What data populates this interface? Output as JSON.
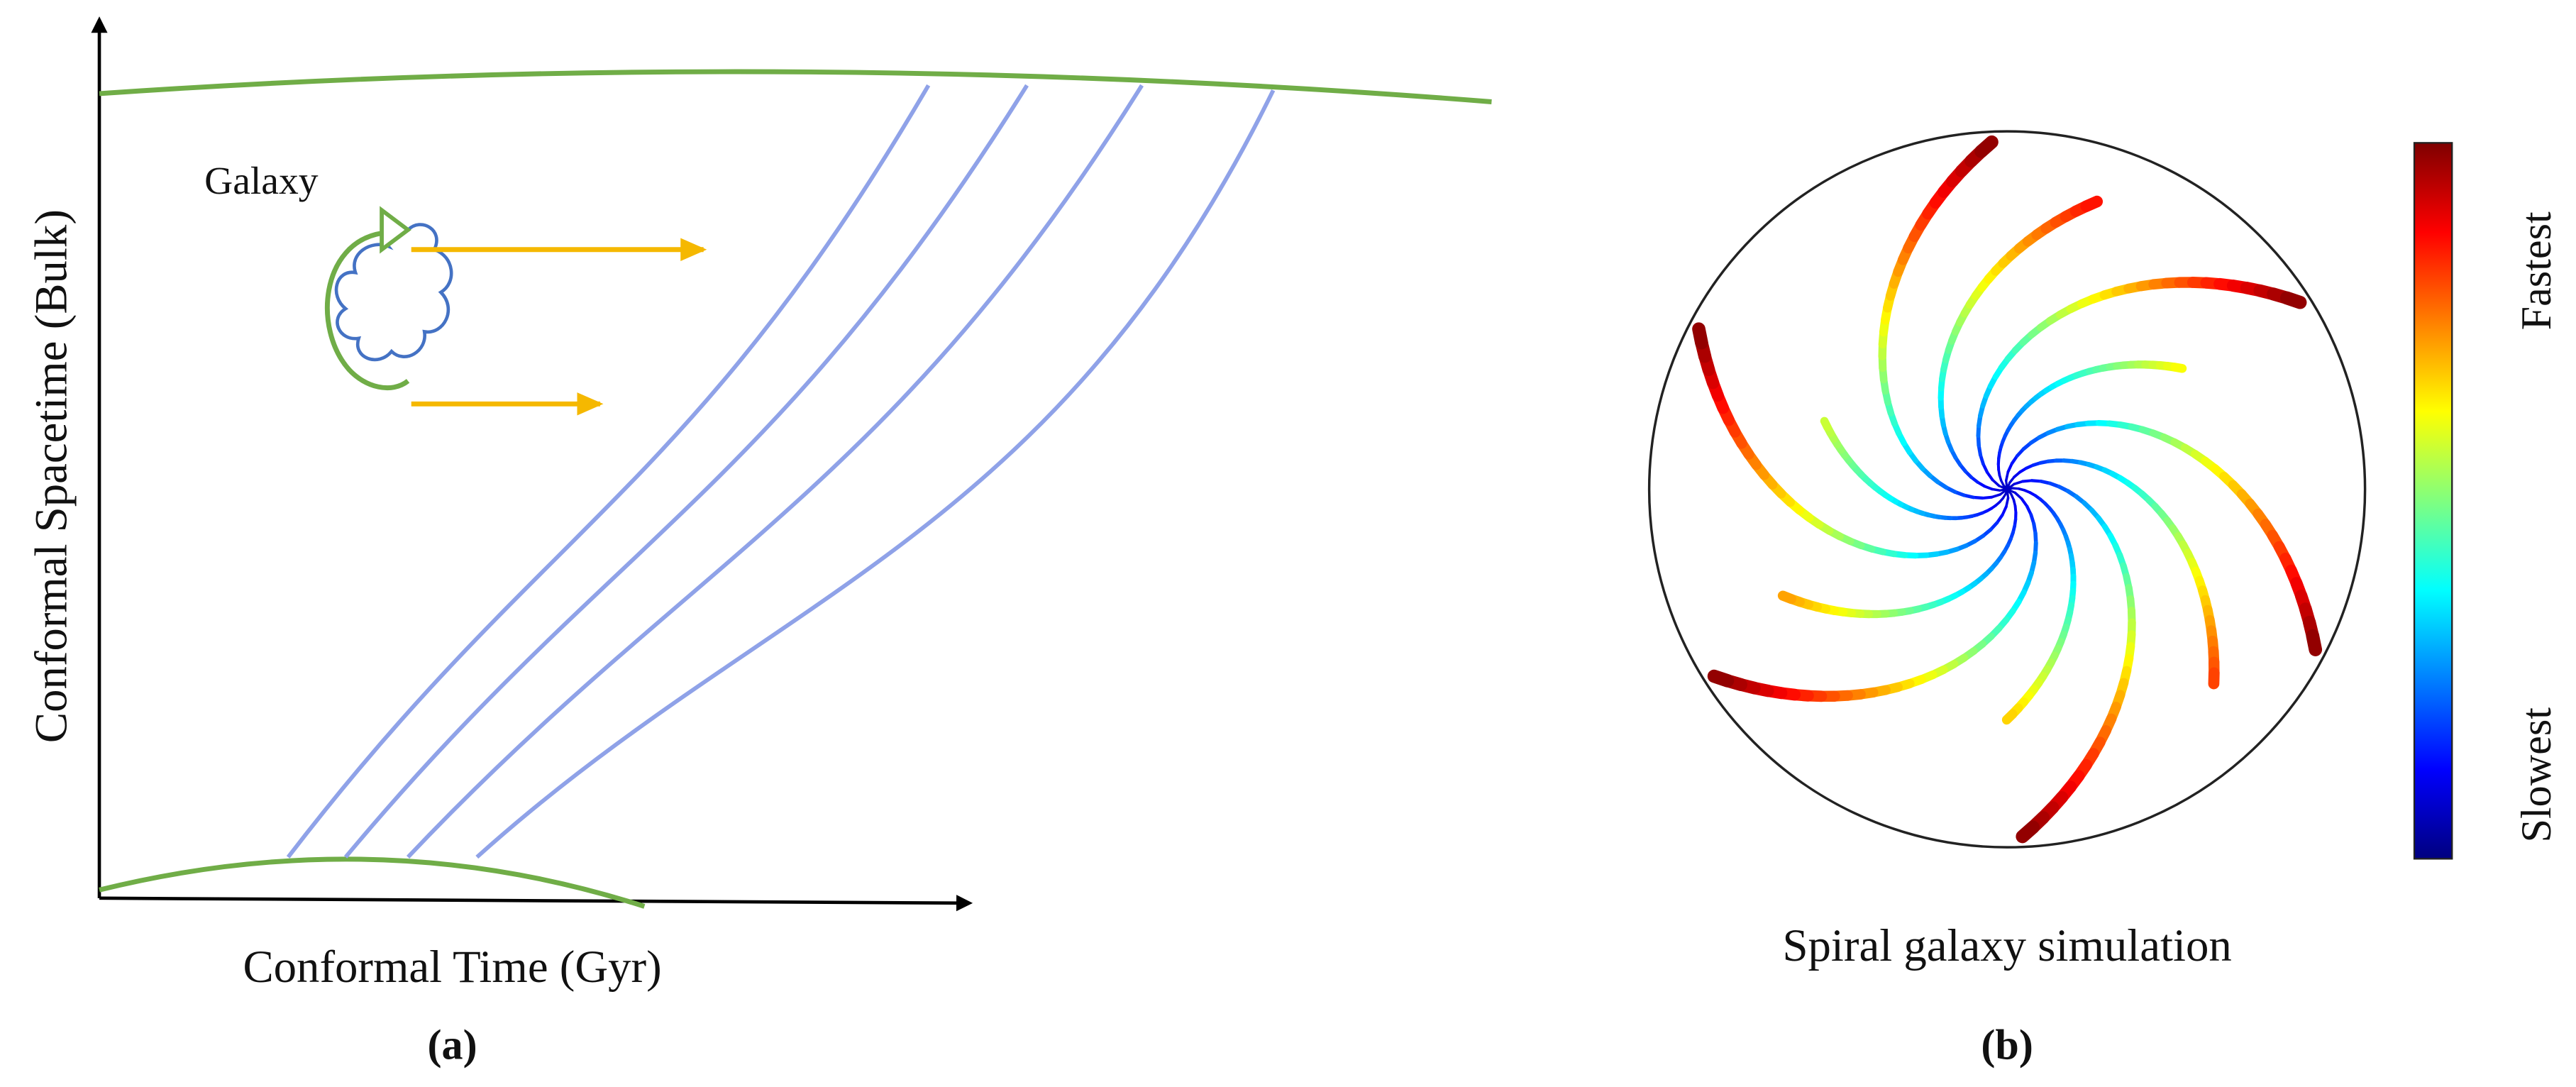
{
  "panel_a": {
    "galaxy_label": "Galaxy",
    "y_axis_label": "Conformal Spacetime (Bulk)",
    "x_axis_label": "Conformal Time (Gyr)",
    "caption": "(a)"
  },
  "panel_b": {
    "title": "Spiral galaxy simulation",
    "colorbar_high": "Fastest",
    "colorbar_low": "Slowest",
    "caption": "(b)"
  }
}
